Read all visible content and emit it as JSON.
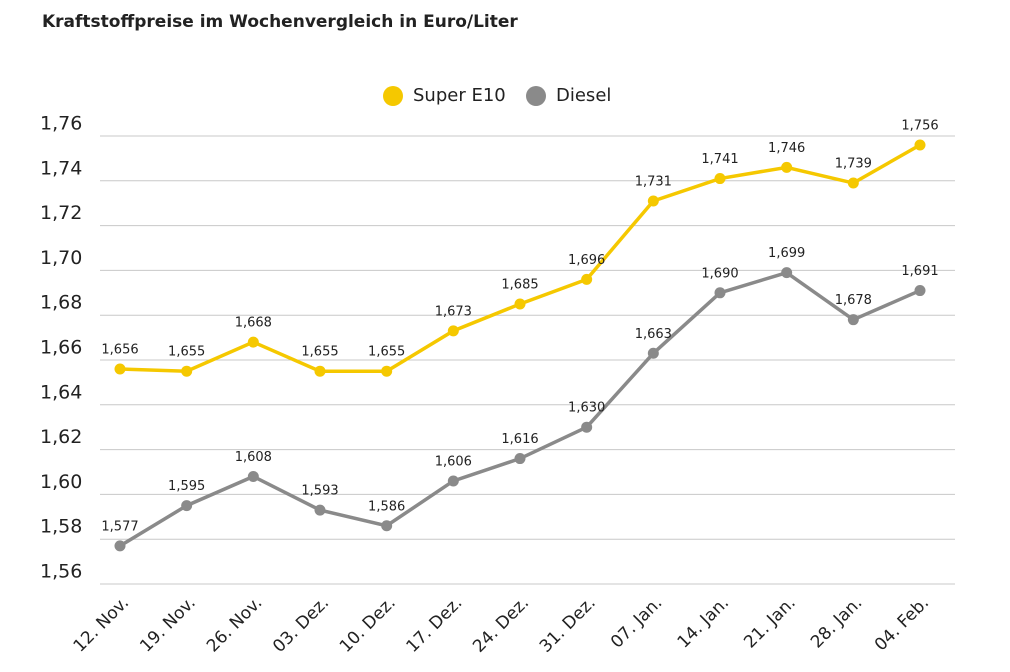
{
  "chart_data": {
    "type": "line",
    "title": "Kraftstoffpreise im Wochenvergleich in Euro/Liter",
    "categories": [
      "12. Nov.",
      "19. Nov.",
      "26. Nov.",
      "03. Dez.",
      "10. Dez.",
      "17. Dez.",
      "24. Dez.",
      "31. Dez.",
      "07. Jan.",
      "14. Jan.",
      "21. Jan.",
      "28. Jan.",
      "04. Feb."
    ],
    "series": [
      {
        "name": "Super E10",
        "color": "#f5c800",
        "values": [
          1.656,
          1.655,
          1.668,
          1.655,
          1.655,
          1.673,
          1.685,
          1.696,
          1.731,
          1.741,
          1.746,
          1.739,
          1.756
        ],
        "value_labels": [
          "1,656",
          "1,655",
          "1,668",
          "1,655",
          "1,655",
          "1,673",
          "1,685",
          "1,696",
          "1,731",
          "1,741",
          "1,746",
          "1,739",
          "1,756"
        ]
      },
      {
        "name": "Diesel",
        "color": "#8a8a8a",
        "values": [
          1.577,
          1.595,
          1.608,
          1.593,
          1.586,
          1.606,
          1.616,
          1.63,
          1.663,
          1.69,
          1.699,
          1.678,
          1.691
        ],
        "value_labels": [
          "1,577",
          "1,595",
          "1,608",
          "1,593",
          "1,586",
          "1,606",
          "1,616",
          "1,630",
          "1,663",
          "1,690",
          "1,699",
          "1,678",
          "1,691"
        ]
      }
    ],
    "ylim": [
      1.56,
      1.76
    ],
    "yticks": [
      {
        "value": 1.56,
        "label": "1,56"
      },
      {
        "value": 1.58,
        "label": "1,58"
      },
      {
        "value": 1.6,
        "label": "1,60"
      },
      {
        "value": 1.62,
        "label": "1,62"
      },
      {
        "value": 1.64,
        "label": "1,64"
      },
      {
        "value": 1.66,
        "label": "1,66"
      },
      {
        "value": 1.68,
        "label": "1,68"
      },
      {
        "value": 1.7,
        "label": "1,70"
      },
      {
        "value": 1.72,
        "label": "1,72"
      },
      {
        "value": 1.74,
        "label": "1,74"
      },
      {
        "value": 1.76,
        "label": "1,76"
      }
    ],
    "grid": true
  }
}
